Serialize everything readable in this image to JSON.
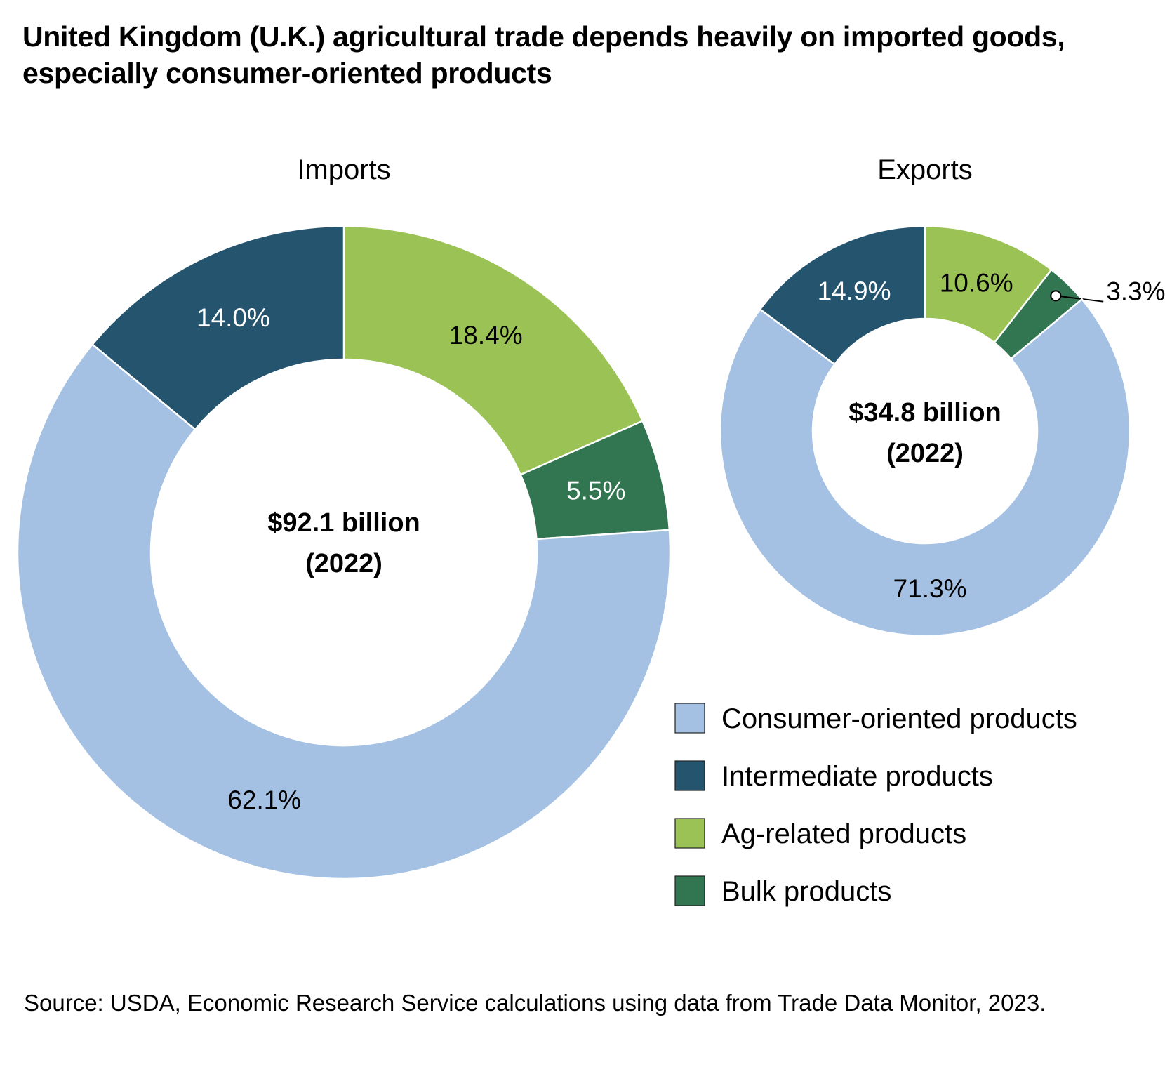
{
  "title": "United Kingdom (U.K.) agricultural trade depends heavily on imported goods, especially consumer-oriented products",
  "source": "Source: USDA, Economic Research Service calculations using data from Trade Data Monitor, 2023.",
  "colors": {
    "consumer": "#a4c1e3",
    "intermediate": "#25546f",
    "ag_related": "#9bc255",
    "bulk": "#327551"
  },
  "legend": [
    {
      "label": "Consumer-oriented products",
      "color": "#a4c1e3"
    },
    {
      "label": "Intermediate products",
      "color": "#25546f"
    },
    {
      "label": "Ag-related products",
      "color": "#9bc255"
    },
    {
      "label": "Bulk products",
      "color": "#327551"
    }
  ],
  "chart_data": [
    {
      "type": "pie",
      "subtype": "donut",
      "title": "Imports",
      "center_label": [
        "$92.1 billion",
        "(2022)"
      ],
      "total": "$92.1 billion",
      "year": "2022",
      "slices": [
        {
          "name": "Ag-related products",
          "value": 18.4,
          "label": "18.4%",
          "color": "#9bc255",
          "label_color": "#000000"
        },
        {
          "name": "Bulk products",
          "value": 5.5,
          "label": "5.5%",
          "color": "#327551",
          "label_color": "#ffffff"
        },
        {
          "name": "Consumer-oriented products",
          "value": 62.1,
          "label": "62.1%",
          "color": "#a4c1e3",
          "label_color": "#000000"
        },
        {
          "name": "Intermediate products",
          "value": 14.0,
          "label": "14.0%",
          "color": "#25546f",
          "label_color": "#ffffff"
        }
      ]
    },
    {
      "type": "pie",
      "subtype": "donut",
      "title": "Exports",
      "center_label": [
        "$34.8 billion",
        "(2022)"
      ],
      "total": "$34.8 billion",
      "year": "2022",
      "slices": [
        {
          "name": "Ag-related products",
          "value": 10.6,
          "label": "10.6%",
          "color": "#9bc255",
          "label_color": "#000000"
        },
        {
          "name": "Bulk products",
          "value": 3.3,
          "label": "3.3%",
          "color": "#327551",
          "label_color": "#000000",
          "callout": true
        },
        {
          "name": "Consumer-oriented products",
          "value": 71.3,
          "label": "71.3%",
          "color": "#a4c1e3",
          "label_color": "#000000"
        },
        {
          "name": "Intermediate products",
          "value": 14.9,
          "label": "14.9%",
          "color": "#25546f",
          "label_color": "#ffffff"
        }
      ]
    }
  ]
}
